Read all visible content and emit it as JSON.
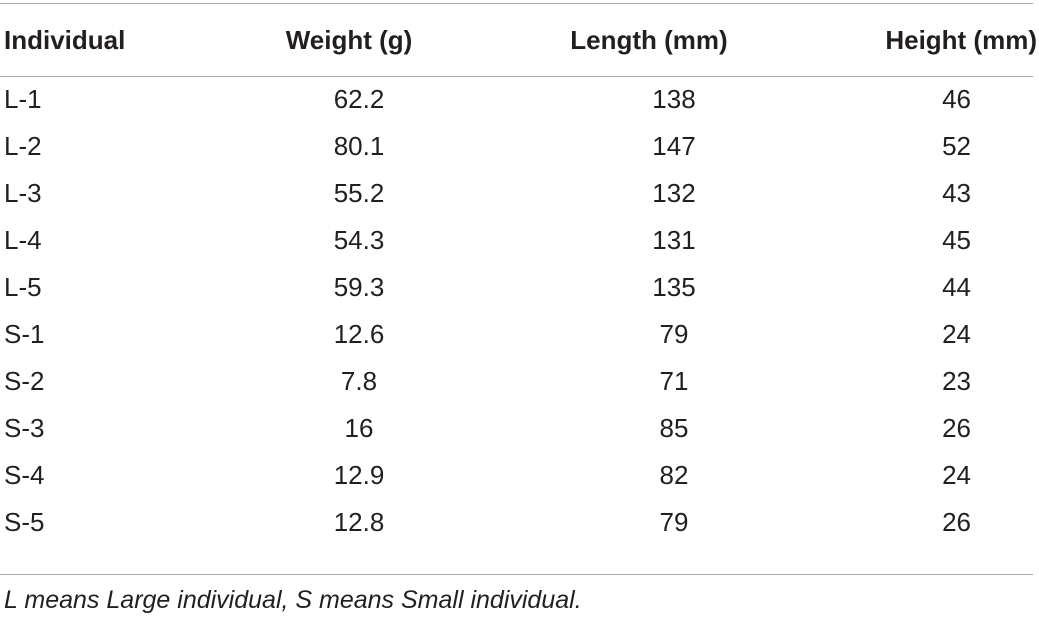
{
  "table": {
    "headers": [
      "Individual",
      "Weight (g)",
      "Length (mm)",
      "Height (mm)"
    ],
    "rows": [
      [
        "L-1",
        "62.2",
        "138",
        "46"
      ],
      [
        "L-2",
        "80.1",
        "147",
        "52"
      ],
      [
        "L-3",
        "55.2",
        "132",
        "43"
      ],
      [
        "L-4",
        "54.3",
        "131",
        "45"
      ],
      [
        "L-5",
        "59.3",
        "135",
        "44"
      ],
      [
        "S-1",
        "12.6",
        "79",
        "24"
      ],
      [
        "S-2",
        "7.8",
        "71",
        "23"
      ],
      [
        "S-3",
        "16",
        "85",
        "26"
      ],
      [
        "S-4",
        "12.9",
        "82",
        "24"
      ],
      [
        "S-5",
        "12.8",
        "79",
        "26"
      ]
    ]
  },
  "footnote": "L means Large individual, S means Small individual."
}
